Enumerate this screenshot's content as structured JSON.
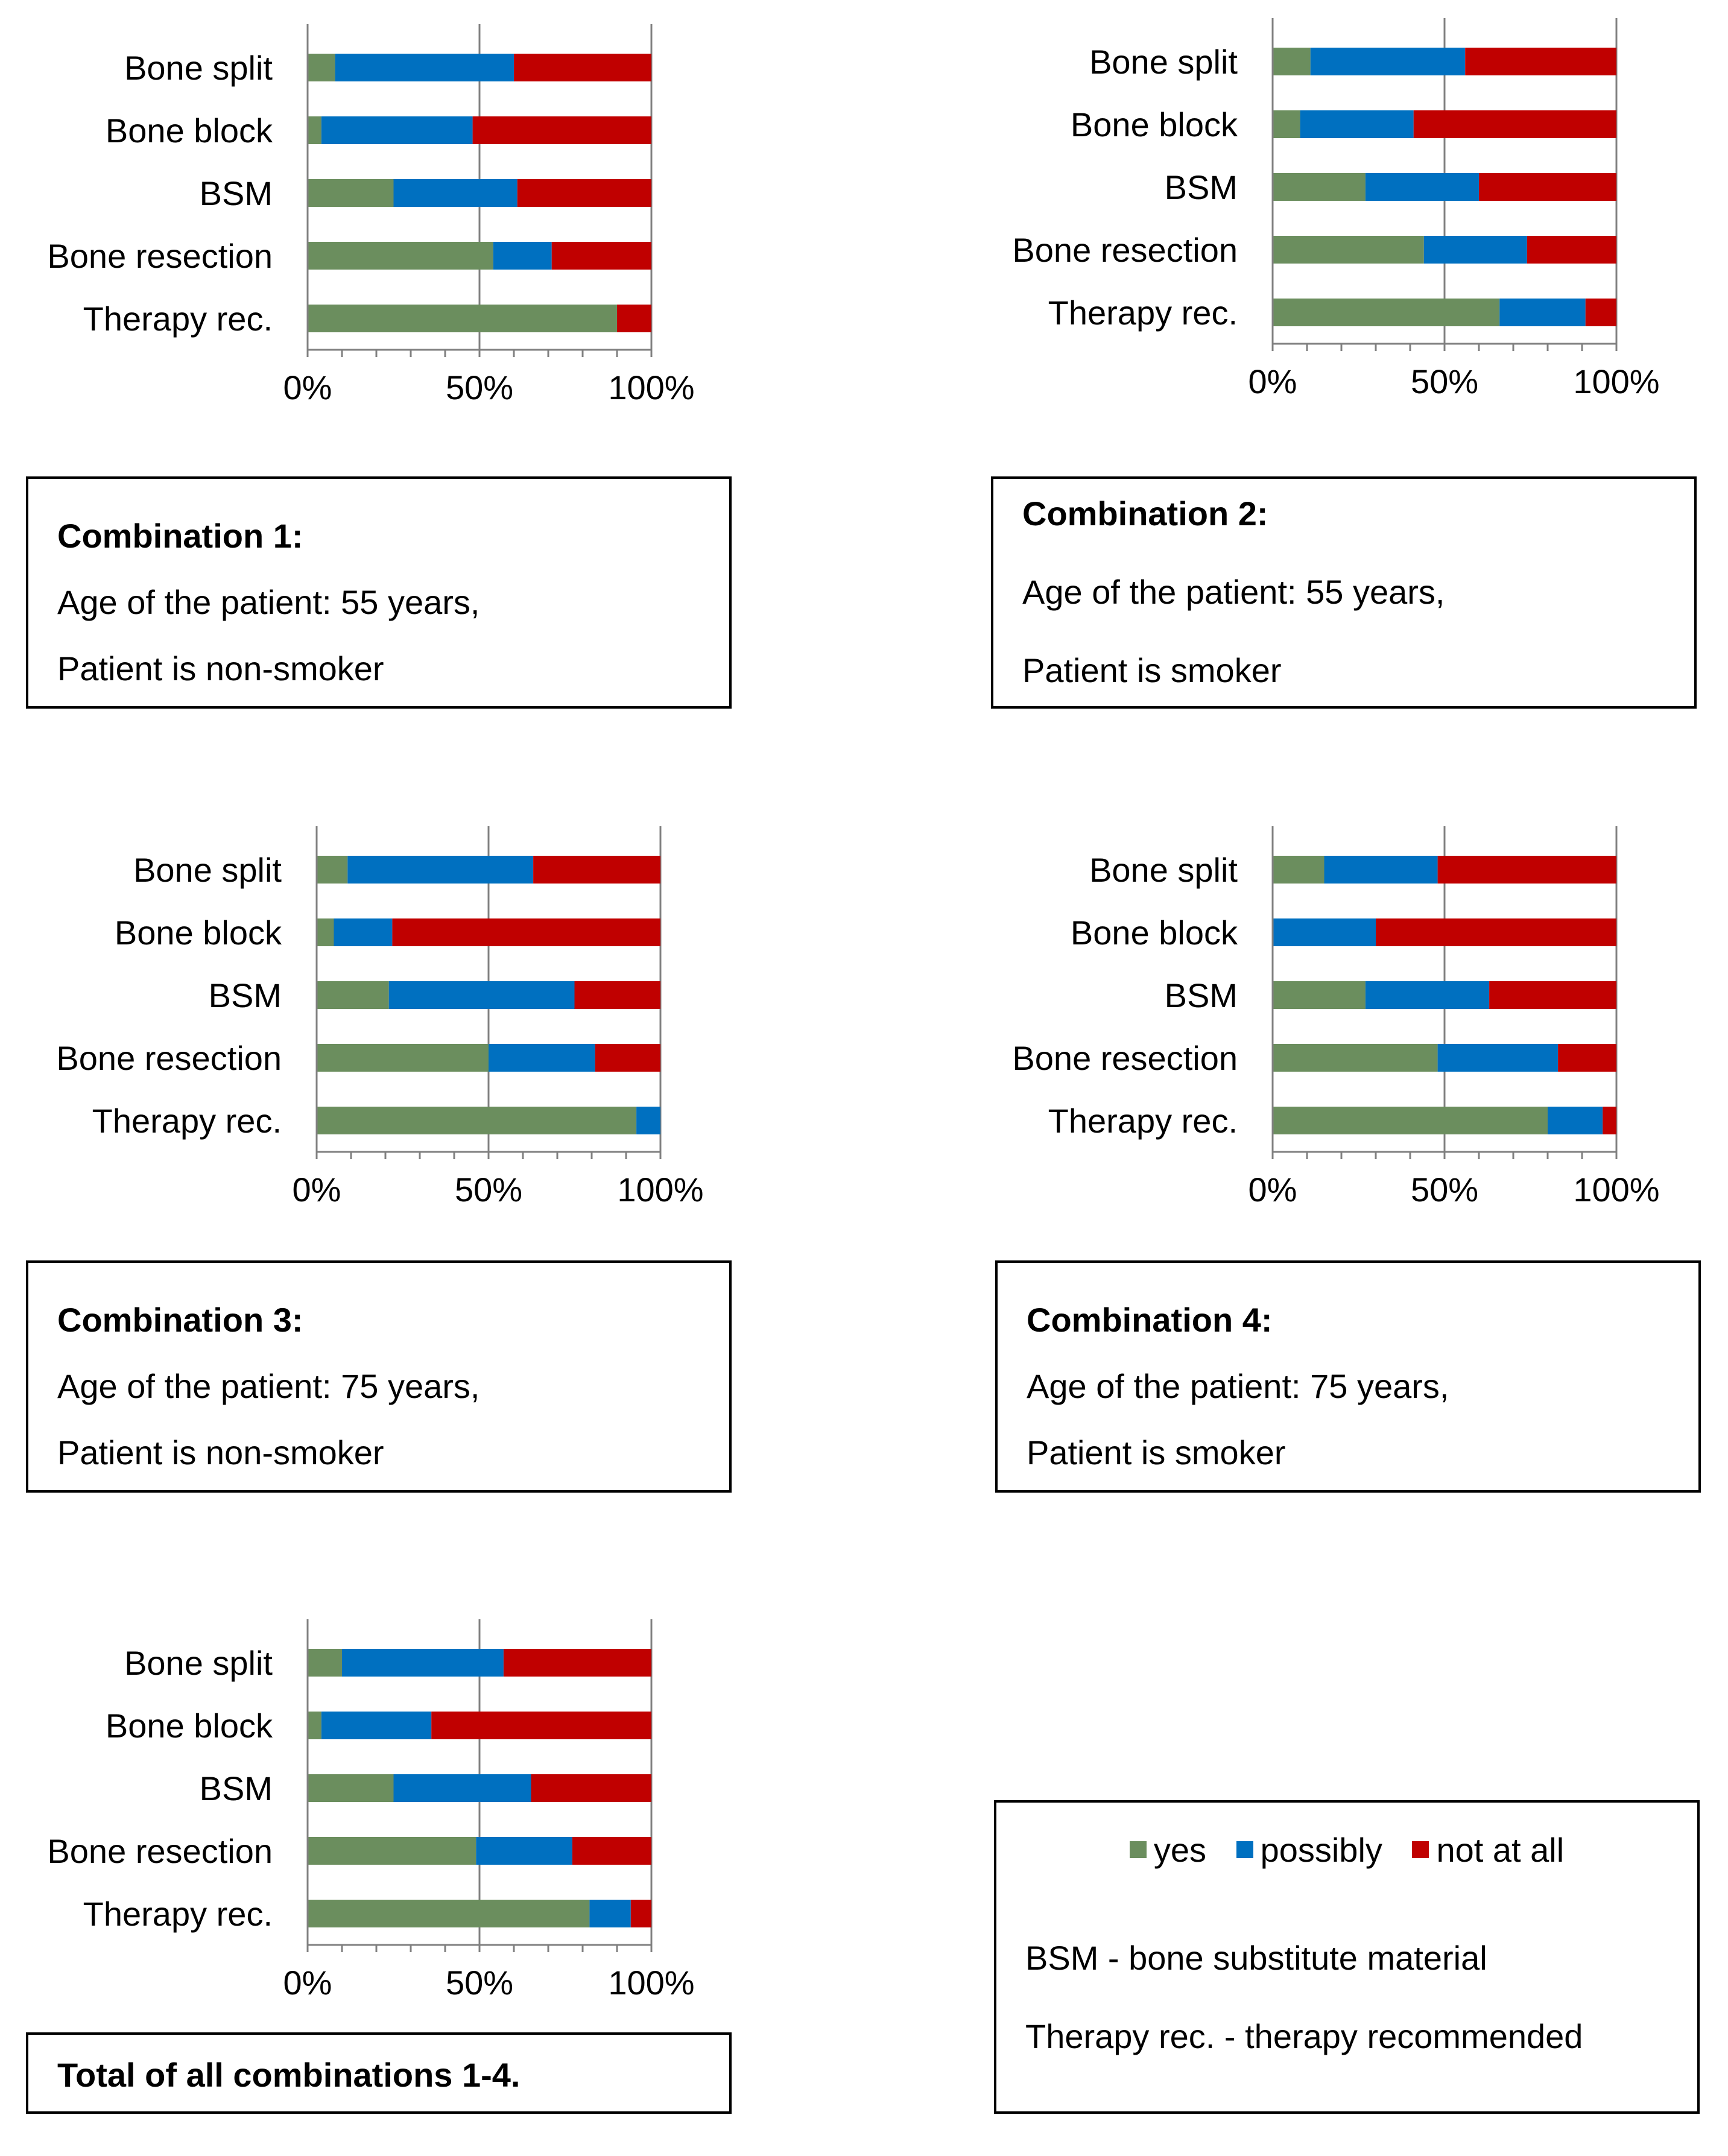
{
  "colors": {
    "yes": "#6b8e5e",
    "possibly": "#0070c0",
    "not_at_all": "#c00000"
  },
  "legend": {
    "yes": "yes",
    "possibly": "possibly",
    "not_at_all": "not at all",
    "bsm_note": "BSM - bone substitute material",
    "therapy_note": "Therapy rec. - therapy recommended"
  },
  "boxes": {
    "c1": {
      "title": "Combination 1:",
      "age": "Age of the patient: 55 years,",
      "smoker": "Patient is non-smoker"
    },
    "c2": {
      "title": "Combination 2:",
      "age": "Age of the patient: 55 years,",
      "smoker": "Patient is smoker"
    },
    "c3": {
      "title": "Combination 3:",
      "age": "Age of the patient: 75 years,",
      "smoker": "Patient is non-smoker"
    },
    "c4": {
      "title": "Combination 4:",
      "age": "Age of the patient: 75 years,",
      "smoker": "Patient is smoker"
    },
    "total": {
      "title": "Total of all combinations 1-4."
    }
  },
  "chart_data": [
    {
      "id": "c1",
      "type": "bar",
      "stacked": true,
      "orientation": "horizontal",
      "categories": [
        "Bone split",
        "Bone block",
        "BSM",
        "Bone resection",
        "Therapy rec."
      ],
      "series": [
        {
          "name": "yes",
          "values": [
            8,
            4,
            25,
            54,
            90
          ]
        },
        {
          "name": "possibly",
          "values": [
            52,
            44,
            36,
            17,
            0
          ]
        },
        {
          "name": "not at all",
          "values": [
            40,
            52,
            39,
            29,
            10
          ]
        }
      ],
      "xlim": [
        0,
        100
      ],
      "xticks": [
        "0%",
        "50%",
        "100%"
      ]
    },
    {
      "id": "c2",
      "type": "bar",
      "stacked": true,
      "orientation": "horizontal",
      "categories": [
        "Bone split",
        "Bone block",
        "BSM",
        "Bone resection",
        "Therapy rec."
      ],
      "series": [
        {
          "name": "yes",
          "values": [
            11,
            8,
            27,
            44,
            66
          ]
        },
        {
          "name": "possibly",
          "values": [
            45,
            33,
            33,
            30,
            25
          ]
        },
        {
          "name": "not at all",
          "values": [
            44,
            59,
            40,
            26,
            9
          ]
        }
      ],
      "xlim": [
        0,
        100
      ],
      "xticks": [
        "0%",
        "50%",
        "100%"
      ]
    },
    {
      "id": "c3",
      "type": "bar",
      "stacked": true,
      "orientation": "horizontal",
      "categories": [
        "Bone split",
        "Bone block",
        "BSM",
        "Bone resection",
        "Therapy rec."
      ],
      "series": [
        {
          "name": "yes",
          "values": [
            9,
            5,
            21,
            50,
            93
          ]
        },
        {
          "name": "possibly",
          "values": [
            54,
            17,
            54,
            31,
            7
          ]
        },
        {
          "name": "not at all",
          "values": [
            37,
            78,
            25,
            19,
            0
          ]
        }
      ],
      "xlim": [
        0,
        100
      ],
      "xticks": [
        "0%",
        "50%",
        "100%"
      ]
    },
    {
      "id": "c4",
      "type": "bar",
      "stacked": true,
      "orientation": "horizontal",
      "categories": [
        "Bone split",
        "Bone block",
        "BSM",
        "Bone resection",
        "Therapy rec."
      ],
      "series": [
        {
          "name": "yes",
          "values": [
            15,
            0,
            27,
            48,
            80
          ]
        },
        {
          "name": "possibly",
          "values": [
            33,
            30,
            36,
            35,
            16
          ]
        },
        {
          "name": "not at all",
          "values": [
            52,
            70,
            37,
            17,
            4
          ]
        }
      ],
      "xlim": [
        0,
        100
      ],
      "xticks": [
        "0%",
        "50%",
        "100%"
      ]
    },
    {
      "id": "total",
      "type": "bar",
      "stacked": true,
      "orientation": "horizontal",
      "categories": [
        "Bone split",
        "Bone block",
        "BSM",
        "Bone resection",
        "Therapy rec."
      ],
      "series": [
        {
          "name": "yes",
          "values": [
            10,
            4,
            25,
            49,
            82
          ]
        },
        {
          "name": "possibly",
          "values": [
            47,
            32,
            40,
            28,
            12
          ]
        },
        {
          "name": "not at all",
          "values": [
            43,
            64,
            35,
            23,
            6
          ]
        }
      ],
      "xlim": [
        0,
        100
      ],
      "xticks": [
        "0%",
        "50%",
        "100%"
      ]
    }
  ]
}
